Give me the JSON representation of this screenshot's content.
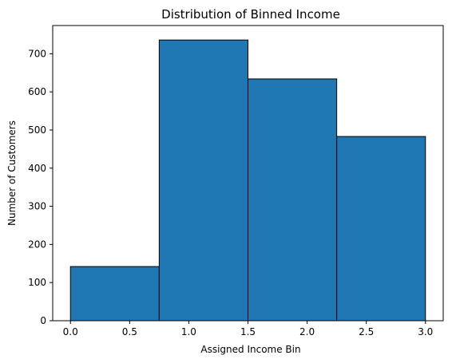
{
  "chart_data": {
    "type": "bar",
    "title": "Distribution of Binned Income",
    "xlabel": "Assigned Income Bin",
    "ylabel": "Number of Customers",
    "bins": [
      {
        "x0": 0.0,
        "x1": 0.75,
        "value": 142
      },
      {
        "x0": 0.75,
        "x1": 1.5,
        "value": 736
      },
      {
        "x0": 1.5,
        "x1": 2.25,
        "value": 634
      },
      {
        "x0": 2.25,
        "x1": 3.0,
        "value": 483
      }
    ],
    "xlim": [
      -0.15,
      3.15
    ],
    "ylim": [
      0,
      774
    ],
    "xticks": [
      0.0,
      0.5,
      1.0,
      1.5,
      2.0,
      2.5,
      3.0
    ],
    "xtick_labels": [
      "0.0",
      "0.5",
      "1.0",
      "1.5",
      "2.0",
      "2.5",
      "3.0"
    ],
    "yticks": [
      0,
      100,
      200,
      300,
      400,
      500,
      600,
      700
    ],
    "ytick_labels": [
      "0",
      "100",
      "200",
      "300",
      "400",
      "500",
      "600",
      "700"
    ],
    "grid": false,
    "bar_color": "#1f77b4",
    "edge_color": "#000000"
  }
}
